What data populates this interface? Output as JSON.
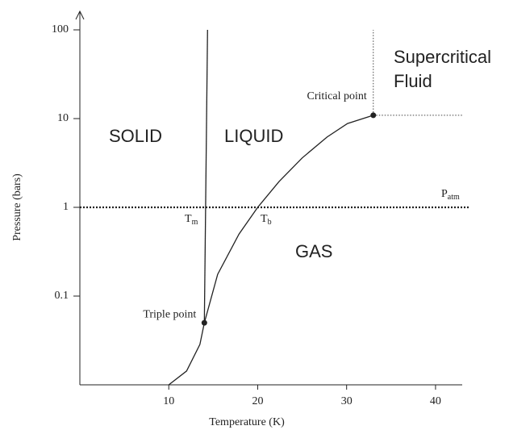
{
  "chart_data": {
    "type": "line",
    "xlabel": "Temperature (K)",
    "ylabel": "Pressure (bars)",
    "xlim": [
      0,
      43
    ],
    "ylim": [
      0.01,
      100
    ],
    "ylog": true,
    "xticks": [
      10,
      20,
      30,
      40
    ],
    "yticks": [
      0.1,
      1,
      10,
      100
    ],
    "series": [
      {
        "color": "#222",
        "x": [
          10,
          12,
          13.5,
          14
        ],
        "values": [
          0.01,
          0.0143,
          0.0285,
          0.05
        ]
      },
      {
        "color": "#222",
        "x": [
          14,
          14.36
        ],
        "values": [
          0.05,
          100
        ]
      },
      {
        "color": "#222",
        "x": [
          14,
          15.5,
          17.9,
          20,
          22.4,
          25,
          27.8,
          30.1,
          33
        ],
        "values": [
          0.05,
          0.176,
          0.5,
          1,
          1.95,
          3.6,
          6.2,
          8.8,
          10.9
        ]
      }
    ],
    "points": [
      {
        "x": 33,
        "y": 10.9,
        "label": "Critical point"
      },
      {
        "x": 14,
        "y": 0.05,
        "label": "Triple point"
      }
    ],
    "reference_lines": [
      {
        "axis": "y",
        "value": 1
      }
    ],
    "regions": [
      "SOLID",
      "LIQUID",
      "GAS",
      "Supercritical",
      "Fluid"
    ],
    "annotations": [
      {
        "text": "T",
        "sub": "m"
      },
      {
        "text": "T",
        "sub": "b"
      },
      {
        "text": "P",
        "sub": "atm"
      }
    ]
  }
}
